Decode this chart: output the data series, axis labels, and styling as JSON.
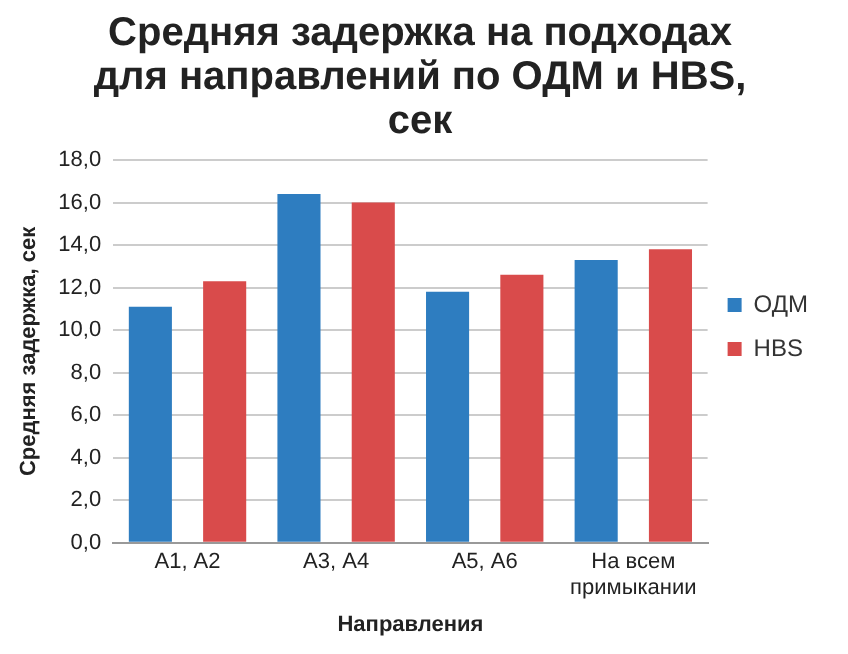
{
  "chart_data": {
    "type": "bar",
    "title": "Средняя задержка на подходах для направлений по ОДМ и HBS, сек",
    "xlabel": "Направления",
    "ylabel": "Средняя задержка, сек",
    "categories": [
      "А1, А2",
      "А3, А4",
      "А5, А6",
      "На всем примыкании"
    ],
    "series": [
      {
        "name": "ОДМ",
        "color": "#2e7dc0",
        "values": [
          11.1,
          16.4,
          11.8,
          13.3
        ]
      },
      {
        "name": "HBS",
        "color": "#d94b4b",
        "values": [
          12.3,
          16.0,
          12.6,
          13.8
        ]
      }
    ],
    "ylim": [
      0,
      18
    ],
    "yticks": [
      {
        "value": 0,
        "label": "0,0"
      },
      {
        "value": 2,
        "label": "2,0"
      },
      {
        "value": 4,
        "label": "4,0"
      },
      {
        "value": 6,
        "label": "6,0"
      },
      {
        "value": 8,
        "label": "8,0"
      },
      {
        "value": 10,
        "label": "10,0"
      },
      {
        "value": 12,
        "label": "12,0"
      },
      {
        "value": 14,
        "label": "14,0"
      },
      {
        "value": 16,
        "label": "16,0"
      },
      {
        "value": 18,
        "label": "18,0"
      }
    ],
    "grid": "y",
    "legend": "right"
  }
}
